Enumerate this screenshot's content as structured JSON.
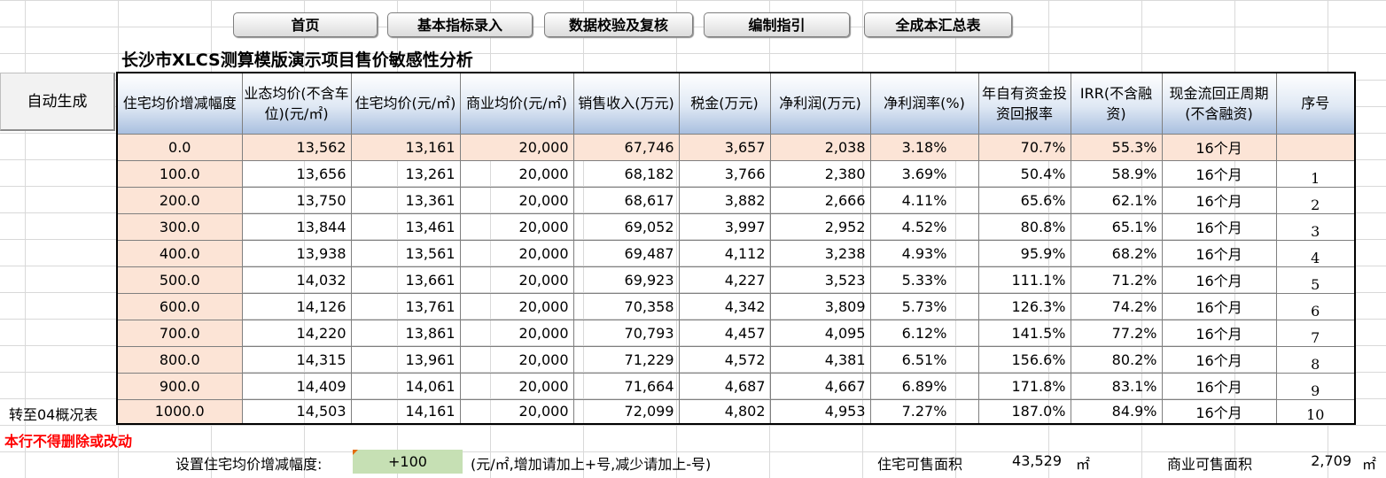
{
  "nav": {
    "buttons": [
      "首页",
      "基本指标录入",
      "数据校验及复核",
      "编制指引",
      "全成本汇总表"
    ]
  },
  "title": "长沙市XLCS测算模版演示项目售价敏感性分析",
  "auto_button": "自动生成",
  "goto_link": "转至04概况表",
  "warning": "本行不得删除或改动",
  "table": {
    "headers": [
      "住宅均价增减幅度",
      "业态均价(不含车位)(元/㎡)",
      "住宅均价(元/㎡)",
      "商业均价(元/㎡)",
      "销售收入(万元)",
      "税金(万元)",
      "净利润(万元)",
      "净利润率(%)",
      "年自有资金投资回报率",
      "IRR(不含融资)",
      "现金流回正周期(不含融资)",
      "序号"
    ],
    "rows": [
      [
        "0.0",
        "13,562",
        "13,161",
        "20,000",
        "67,746",
        "3,657",
        "2,038",
        "3.18%",
        "70.7%",
        "55.3%",
        "16个月",
        ""
      ],
      [
        "100.0",
        "13,656",
        "13,261",
        "20,000",
        "68,182",
        "3,766",
        "2,380",
        "3.69%",
        "50.4%",
        "58.9%",
        "16个月",
        "1"
      ],
      [
        "200.0",
        "13,750",
        "13,361",
        "20,000",
        "68,617",
        "3,882",
        "2,666",
        "4.11%",
        "65.6%",
        "62.1%",
        "16个月",
        "2"
      ],
      [
        "300.0",
        "13,844",
        "13,461",
        "20,000",
        "69,052",
        "3,997",
        "2,952",
        "4.52%",
        "80.8%",
        "65.1%",
        "16个月",
        "3"
      ],
      [
        "400.0",
        "13,938",
        "13,561",
        "20,000",
        "69,487",
        "4,112",
        "3,238",
        "4.93%",
        "95.9%",
        "68.2%",
        "16个月",
        "4"
      ],
      [
        "500.0",
        "14,032",
        "13,661",
        "20,000",
        "69,923",
        "4,227",
        "3,523",
        "5.33%",
        "111.1%",
        "71.2%",
        "16个月",
        "5"
      ],
      [
        "600.0",
        "14,126",
        "13,761",
        "20,000",
        "70,358",
        "4,342",
        "3,809",
        "5.73%",
        "126.3%",
        "74.2%",
        "16个月",
        "6"
      ],
      [
        "700.0",
        "14,220",
        "13,861",
        "20,000",
        "70,793",
        "4,457",
        "4,095",
        "6.12%",
        "141.5%",
        "77.2%",
        "16个月",
        "7"
      ],
      [
        "800.0",
        "14,315",
        "13,961",
        "20,000",
        "71,229",
        "4,572",
        "4,381",
        "6.51%",
        "156.6%",
        "80.2%",
        "16个月",
        "8"
      ],
      [
        "900.0",
        "14,409",
        "14,061",
        "20,000",
        "71,664",
        "4,687",
        "4,667",
        "6.89%",
        "171.8%",
        "83.1%",
        "16个月",
        "9"
      ],
      [
        "1000.0",
        "14,503",
        "14,161",
        "20,000",
        "72,099",
        "4,802",
        "4,953",
        "7.27%",
        "187.0%",
        "84.9%",
        "16个月",
        "10"
      ]
    ]
  },
  "bottom": {
    "increment_label": "设置住宅均价增减幅度:",
    "increment_value": "+100",
    "increment_hint": "(元/㎡,增加请加上+号,减少请加上-号)",
    "residential_area_label": "住宅可售面积",
    "residential_area_value": "43,529",
    "residential_area_unit": "㎡",
    "commercial_area_label": "商业可售面积",
    "commercial_area_value": "2,709",
    "commercial_area_unit": "㎡"
  },
  "colors": {
    "header_gradient_bottom": "#a9bfdf",
    "increment_cell": "#fce4d6",
    "input_cell": "#c6e0b4",
    "warning_text": "#ff0000"
  }
}
